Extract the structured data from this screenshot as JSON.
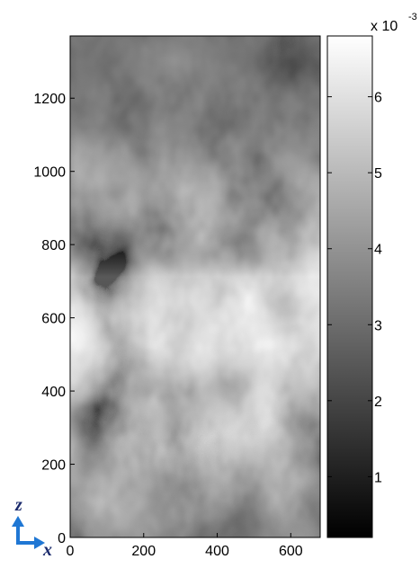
{
  "chart_data": {
    "type": "heatmap",
    "colormap": "gray",
    "x_ticks": [
      0,
      200,
      400,
      600
    ],
    "y_ticks": [
      0,
      200,
      400,
      600,
      800,
      1000,
      1200
    ],
    "xlim": [
      0,
      680
    ],
    "ylim": [
      0,
      1370
    ],
    "grid": false,
    "field_description": "grayscale random field; darker band near top (~1000-1370) and bottom (~0-250), lighter band in middle (~300-850)",
    "colorbar": {
      "ticks": [
        1,
        2,
        3,
        4,
        5,
        6
      ],
      "range": [
        0.2,
        6.8
      ],
      "exponent_base": "x 10",
      "exponent_power": "-3",
      "location": "right"
    },
    "axis_indicator": {
      "vertical_label": "z",
      "horizontal_label": "x",
      "color": "#1f77d4"
    }
  }
}
